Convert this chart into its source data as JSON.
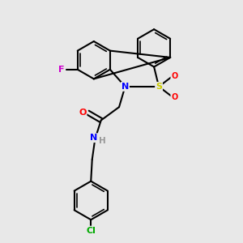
{
  "background_color": "#e8e8e8",
  "bond_color": "#000000",
  "atom_colors": {
    "F": "#cc00cc",
    "N": "#0000ff",
    "S": "#cccc00",
    "O": "#ff0000",
    "Cl": "#00aa00",
    "H": "#999999",
    "C": "#000000"
  },
  "figsize": [
    3.0,
    3.0
  ],
  "dpi": 100
}
